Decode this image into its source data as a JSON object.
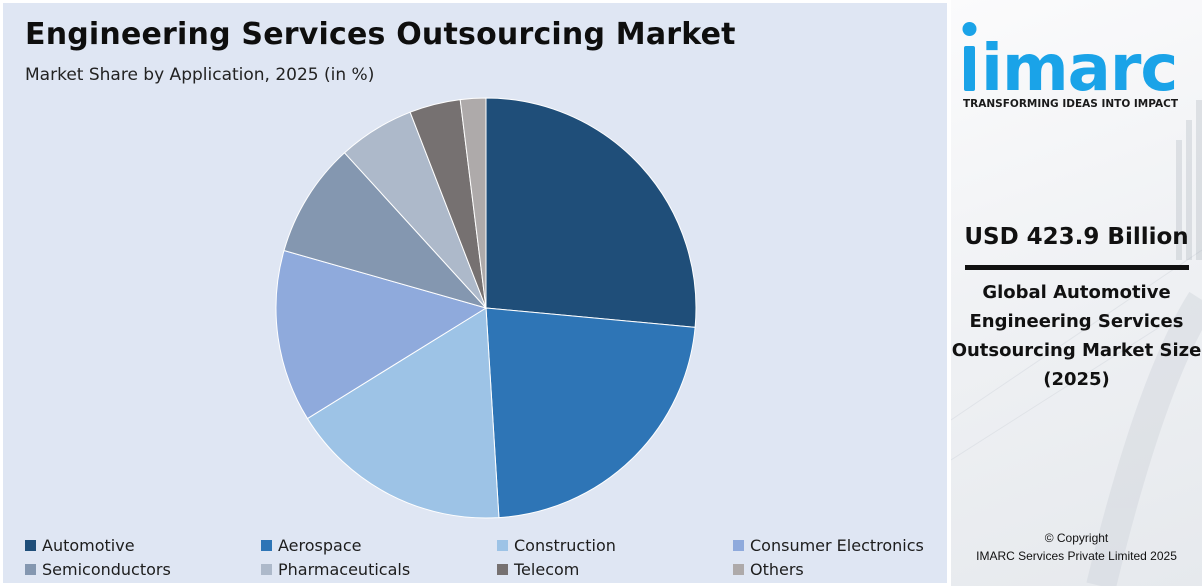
{
  "chart_data": {
    "type": "pie",
    "title": "Engineering Services Outsourcing Market",
    "subtitle": "Market Share by Application, 2025 (in %)",
    "categories": [
      "Automotive",
      "Aerospace",
      "Construction",
      "Consumer Electronics",
      "Semiconductors",
      "Pharmaceuticals",
      "Telecom",
      "Others"
    ],
    "values": [
      27.0,
      23.0,
      17.5,
      13.5,
      9.0,
      6.0,
      4.0,
      2.0
    ],
    "colors": [
      "#1f4e79",
      "#2e75b6",
      "#9dc3e6",
      "#8faadc",
      "#8497b0",
      "#adb9ca",
      "#767171",
      "#aeaaaa"
    ],
    "legend_position": "bottom"
  },
  "sidebar": {
    "logo_text": "imarc",
    "tagline": "TRANSFORMING IDEAS INTO IMPACT",
    "kpi_value": "USD 423.9 Billion",
    "kpi_description": "Global Automotive Engineering Services Outsourcing Market Size (2025)",
    "copyright_line1": "© Copyright",
    "copyright_line2": "IMARC Services Private Limited 2025",
    "brand_color": "#1aa3e8"
  }
}
